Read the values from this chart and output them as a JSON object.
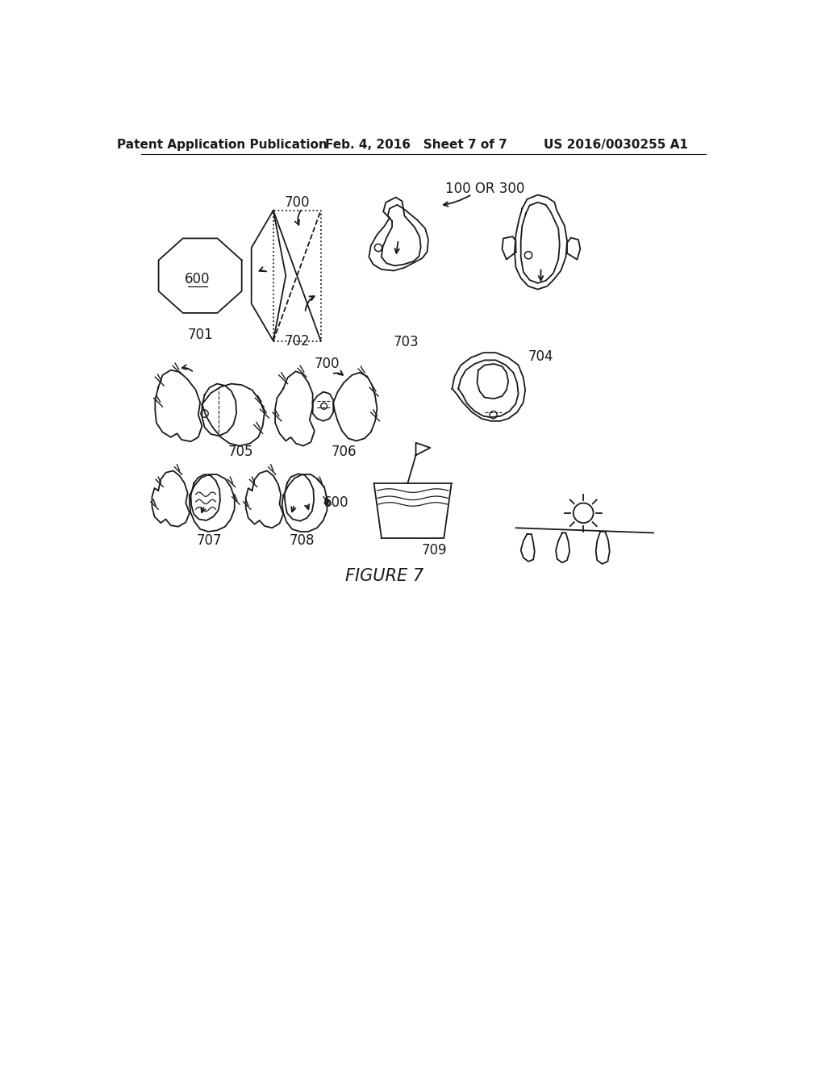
{
  "background_color": "#ffffff",
  "header_left": "Patent Application Publication",
  "header_mid": "Feb. 4, 2016   Sheet 7 of 7",
  "header_right": "US 2016/0030255 A1",
  "figure_label": "FIGURE 7",
  "header_fontsize": 11,
  "label_fontsize": 12,
  "figure_label_fontsize": 15,
  "line_color": "#1a1a1a",
  "line_width": 1.3
}
